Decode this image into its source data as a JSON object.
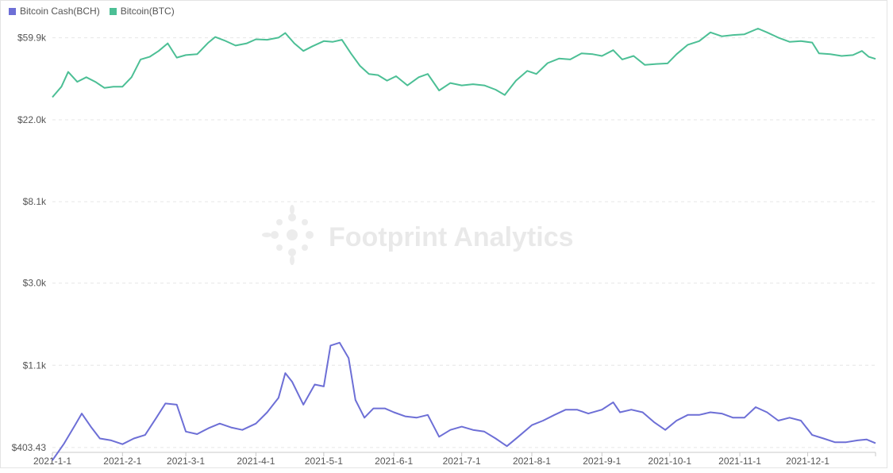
{
  "watermark": "Footprint Analytics",
  "chart_data": {
    "type": "line",
    "y_scale": "log",
    "ylim": [
      380,
      95000
    ],
    "y_ticks": [
      "$403.43",
      "$1.1k",
      "$3.0k",
      "$8.1k",
      "$22.0k",
      "$59.9k"
    ],
    "y_tick_values": [
      403.43,
      1100,
      3000,
      8100,
      22000,
      59900
    ],
    "x_ticks": [
      "2021-1-1",
      "2021-2-1",
      "2021-3-1",
      "2021-4-1",
      "2021-5-1",
      "2021-6-1",
      "2021-7-1",
      "2021-8-1",
      "2021-9-1",
      "2021-10-1",
      "2021-11-1",
      "2021-12-1"
    ],
    "grid": "horizontal-dashed",
    "legend_position": "top-left",
    "series": [
      {
        "name": "Bitcoin Cash(BCH)",
        "color": "#6d6fd6",
        "points": [
          [
            "2021-01-01",
            345
          ],
          [
            "2021-01-06",
            420
          ],
          [
            "2021-01-11",
            530
          ],
          [
            "2021-01-14",
            610
          ],
          [
            "2021-01-18",
            520
          ],
          [
            "2021-01-22",
            450
          ],
          [
            "2021-01-27",
            440
          ],
          [
            "2021-02-01",
            420
          ],
          [
            "2021-02-06",
            450
          ],
          [
            "2021-02-11",
            470
          ],
          [
            "2021-02-16",
            580
          ],
          [
            "2021-02-20",
            690
          ],
          [
            "2021-02-25",
            680
          ],
          [
            "2021-03-01",
            490
          ],
          [
            "2021-03-06",
            475
          ],
          [
            "2021-03-11",
            510
          ],
          [
            "2021-03-16",
            540
          ],
          [
            "2021-03-21",
            515
          ],
          [
            "2021-03-26",
            500
          ],
          [
            "2021-04-01",
            540
          ],
          [
            "2021-04-06",
            620
          ],
          [
            "2021-04-11",
            740
          ],
          [
            "2021-04-14",
            1000
          ],
          [
            "2021-04-17",
            900
          ],
          [
            "2021-04-22",
            680
          ],
          [
            "2021-04-27",
            870
          ],
          [
            "2021-05-01",
            850
          ],
          [
            "2021-05-04",
            1400
          ],
          [
            "2021-05-08",
            1450
          ],
          [
            "2021-05-12",
            1200
          ],
          [
            "2021-05-15",
            720
          ],
          [
            "2021-05-19",
            580
          ],
          [
            "2021-05-23",
            650
          ],
          [
            "2021-05-28",
            650
          ],
          [
            "2021-06-01",
            620
          ],
          [
            "2021-06-06",
            590
          ],
          [
            "2021-06-11",
            580
          ],
          [
            "2021-06-16",
            600
          ],
          [
            "2021-06-21",
            460
          ],
          [
            "2021-06-26",
            500
          ],
          [
            "2021-07-01",
            520
          ],
          [
            "2021-07-06",
            500
          ],
          [
            "2021-07-11",
            490
          ],
          [
            "2021-07-16",
            450
          ],
          [
            "2021-07-21",
            410
          ],
          [
            "2021-07-26",
            460
          ],
          [
            "2021-08-01",
            530
          ],
          [
            "2021-08-06",
            560
          ],
          [
            "2021-08-11",
            600
          ],
          [
            "2021-08-16",
            640
          ],
          [
            "2021-08-21",
            640
          ],
          [
            "2021-08-26",
            610
          ],
          [
            "2021-09-01",
            640
          ],
          [
            "2021-09-06",
            700
          ],
          [
            "2021-09-09",
            620
          ],
          [
            "2021-09-14",
            640
          ],
          [
            "2021-09-19",
            620
          ],
          [
            "2021-09-24",
            550
          ],
          [
            "2021-09-29",
            500
          ],
          [
            "2021-10-04",
            560
          ],
          [
            "2021-10-09",
            600
          ],
          [
            "2021-10-14",
            600
          ],
          [
            "2021-10-19",
            620
          ],
          [
            "2021-10-24",
            610
          ],
          [
            "2021-10-29",
            580
          ],
          [
            "2021-11-03",
            580
          ],
          [
            "2021-11-08",
            660
          ],
          [
            "2021-11-13",
            620
          ],
          [
            "2021-11-18",
            560
          ],
          [
            "2021-11-23",
            580
          ],
          [
            "2021-11-28",
            560
          ],
          [
            "2021-12-03",
            470
          ],
          [
            "2021-12-08",
            450
          ],
          [
            "2021-12-13",
            430
          ],
          [
            "2021-12-18",
            430
          ],
          [
            "2021-12-23",
            440
          ],
          [
            "2021-12-27",
            445
          ],
          [
            "2021-12-31",
            425
          ]
        ]
      },
      {
        "name": "Bitcoin(BTC)",
        "color": "#4cbf95",
        "points": [
          [
            "2021-01-01",
            29000
          ],
          [
            "2021-01-05",
            33000
          ],
          [
            "2021-01-08",
            39500
          ],
          [
            "2021-01-12",
            35000
          ],
          [
            "2021-01-16",
            37000
          ],
          [
            "2021-01-20",
            35000
          ],
          [
            "2021-01-24",
            32500
          ],
          [
            "2021-01-28",
            33000
          ],
          [
            "2021-02-01",
            33000
          ],
          [
            "2021-02-05",
            37000
          ],
          [
            "2021-02-09",
            46000
          ],
          [
            "2021-02-13",
            47500
          ],
          [
            "2021-02-17",
            51000
          ],
          [
            "2021-02-21",
            56000
          ],
          [
            "2021-02-25",
            47000
          ],
          [
            "2021-03-01",
            48500
          ],
          [
            "2021-03-06",
            49000
          ],
          [
            "2021-03-11",
            56500
          ],
          [
            "2021-03-14",
            60500
          ],
          [
            "2021-03-18",
            58000
          ],
          [
            "2021-03-23",
            54500
          ],
          [
            "2021-03-28",
            56000
          ],
          [
            "2021-04-01",
            58800
          ],
          [
            "2021-04-06",
            58500
          ],
          [
            "2021-04-11",
            60000
          ],
          [
            "2021-04-14",
            63500
          ],
          [
            "2021-04-18",
            56000
          ],
          [
            "2021-04-22",
            51000
          ],
          [
            "2021-04-26",
            54000
          ],
          [
            "2021-05-01",
            57500
          ],
          [
            "2021-05-05",
            57000
          ],
          [
            "2021-05-09",
            58500
          ],
          [
            "2021-05-13",
            49500
          ],
          [
            "2021-05-17",
            42500
          ],
          [
            "2021-05-21",
            38500
          ],
          [
            "2021-05-25",
            38000
          ],
          [
            "2021-05-29",
            35500
          ],
          [
            "2021-06-02",
            37500
          ],
          [
            "2021-06-07",
            33500
          ],
          [
            "2021-06-12",
            37000
          ],
          [
            "2021-06-16",
            38500
          ],
          [
            "2021-06-21",
            31500
          ],
          [
            "2021-06-26",
            34500
          ],
          [
            "2021-07-01",
            33500
          ],
          [
            "2021-07-06",
            34000
          ],
          [
            "2021-07-11",
            33500
          ],
          [
            "2021-07-16",
            31800
          ],
          [
            "2021-07-20",
            29800
          ],
          [
            "2021-07-25",
            35500
          ],
          [
            "2021-07-30",
            40000
          ],
          [
            "2021-08-03",
            38500
          ],
          [
            "2021-08-08",
            44000
          ],
          [
            "2021-08-13",
            46500
          ],
          [
            "2021-08-18",
            46000
          ],
          [
            "2021-08-23",
            49500
          ],
          [
            "2021-08-28",
            49000
          ],
          [
            "2021-09-01",
            48000
          ],
          [
            "2021-09-06",
            51500
          ],
          [
            "2021-09-10",
            46000
          ],
          [
            "2021-09-15",
            48000
          ],
          [
            "2021-09-20",
            43000
          ],
          [
            "2021-09-25",
            43500
          ],
          [
            "2021-09-30",
            43800
          ],
          [
            "2021-10-04",
            49000
          ],
          [
            "2021-10-09",
            55000
          ],
          [
            "2021-10-14",
            57500
          ],
          [
            "2021-10-19",
            64000
          ],
          [
            "2021-10-24",
            61000
          ],
          [
            "2021-10-29",
            62000
          ],
          [
            "2021-11-03",
            62500
          ],
          [
            "2021-11-09",
            67000
          ],
          [
            "2021-11-13",
            64000
          ],
          [
            "2021-11-18",
            60000
          ],
          [
            "2021-11-23",
            57000
          ],
          [
            "2021-11-28",
            57500
          ],
          [
            "2021-12-03",
            56500
          ],
          [
            "2021-12-06",
            49500
          ],
          [
            "2021-12-11",
            49000
          ],
          [
            "2021-12-16",
            48000
          ],
          [
            "2021-12-21",
            48500
          ],
          [
            "2021-12-25",
            51000
          ],
          [
            "2021-12-28",
            47500
          ],
          [
            "2021-12-31",
            46300
          ]
        ]
      }
    ]
  }
}
